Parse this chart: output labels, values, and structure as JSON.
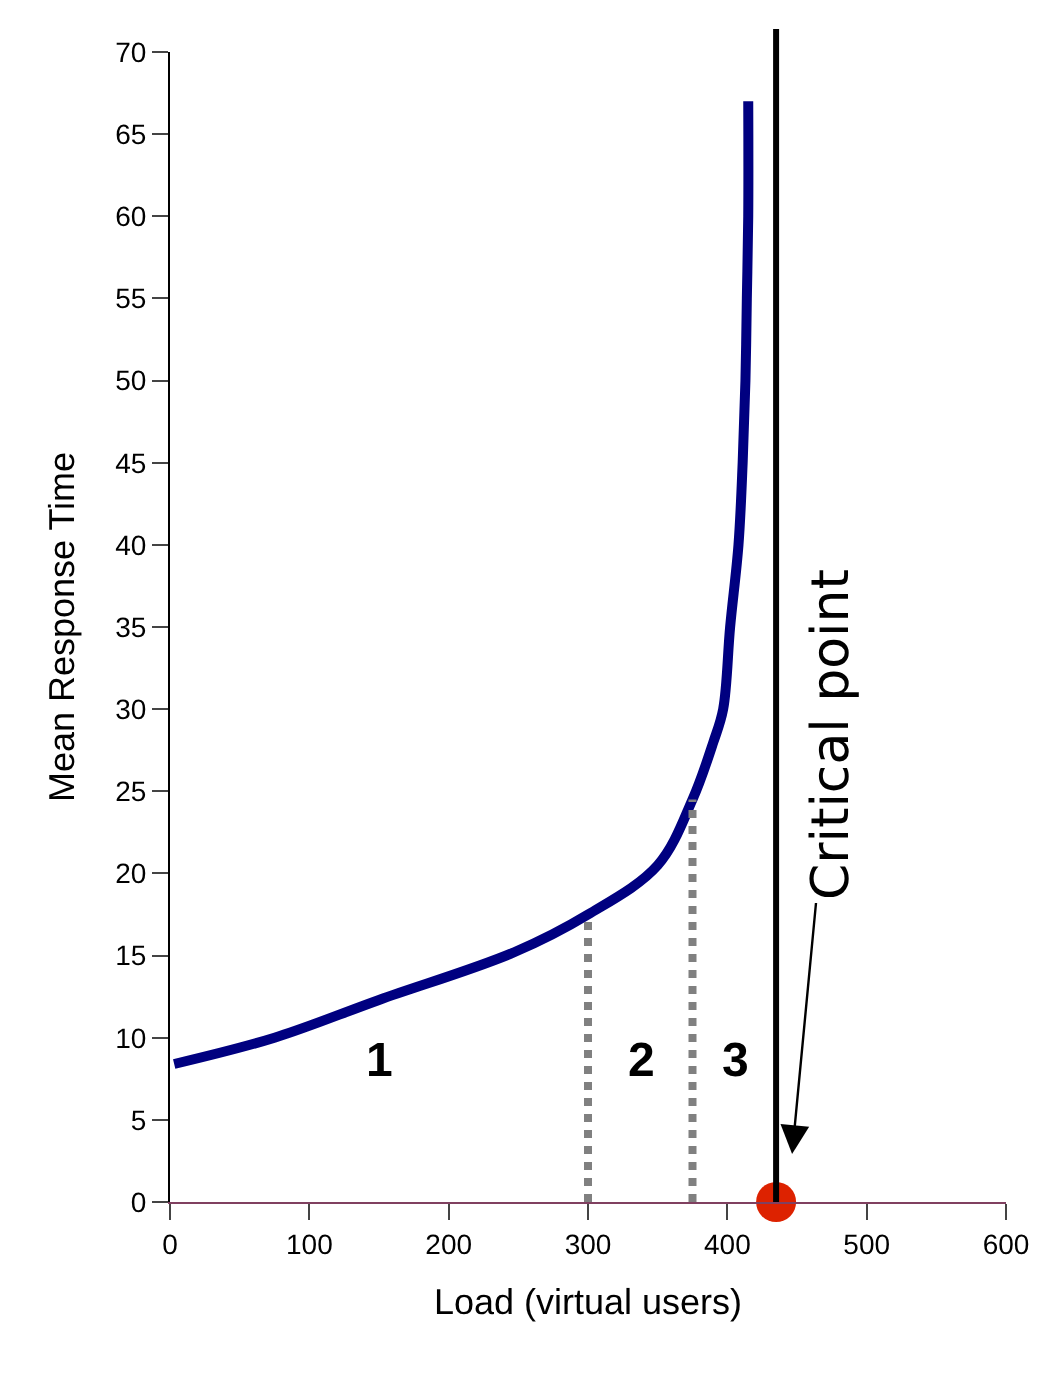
{
  "chart_data": {
    "type": "line",
    "xlabel": "Load (virtual users)",
    "ylabel": "Mean Response Time",
    "xlim": [
      0,
      600
    ],
    "xticks": [
      0,
      100,
      200,
      300,
      400,
      500,
      600
    ],
    "ylim": [
      0,
      70
    ],
    "yticks": [
      0,
      5,
      10,
      15,
      20,
      25,
      30,
      35,
      40,
      45,
      50,
      55,
      60,
      65,
      70
    ],
    "legend": false,
    "series": [
      {
        "color": "#000080",
        "x": [
          3,
          75,
          150,
          247,
          300,
          350,
          375,
          390,
          397,
          402,
          408,
          411,
          413,
          414,
          415,
          415
        ],
        "values": [
          8.4,
          10,
          12.3,
          15.2,
          17.5,
          20.5,
          24.5,
          28,
          30,
          35,
          40,
          45,
          50,
          55,
          60,
          67
        ]
      },
      {
        "color": "#808080",
        "line_style": "dotted",
        "x": [
          300,
          300
        ],
        "values": [
          0,
          17.5
        ]
      },
      {
        "color": "#808080",
        "line_style": "dotted",
        "x": [
          375,
          375
        ],
        "values": [
          0,
          24.5
        ]
      },
      {
        "type": "scatter",
        "marker": "circle",
        "color": "#dd2200",
        "x": [
          435
        ],
        "values": [
          0
        ]
      }
    ],
    "ref_lines": [
      {
        "axis": "x",
        "value": 435,
        "color": "#000000"
      }
    ],
    "annotations": [
      "1",
      "2",
      "3",
      "Critical point"
    ]
  }
}
